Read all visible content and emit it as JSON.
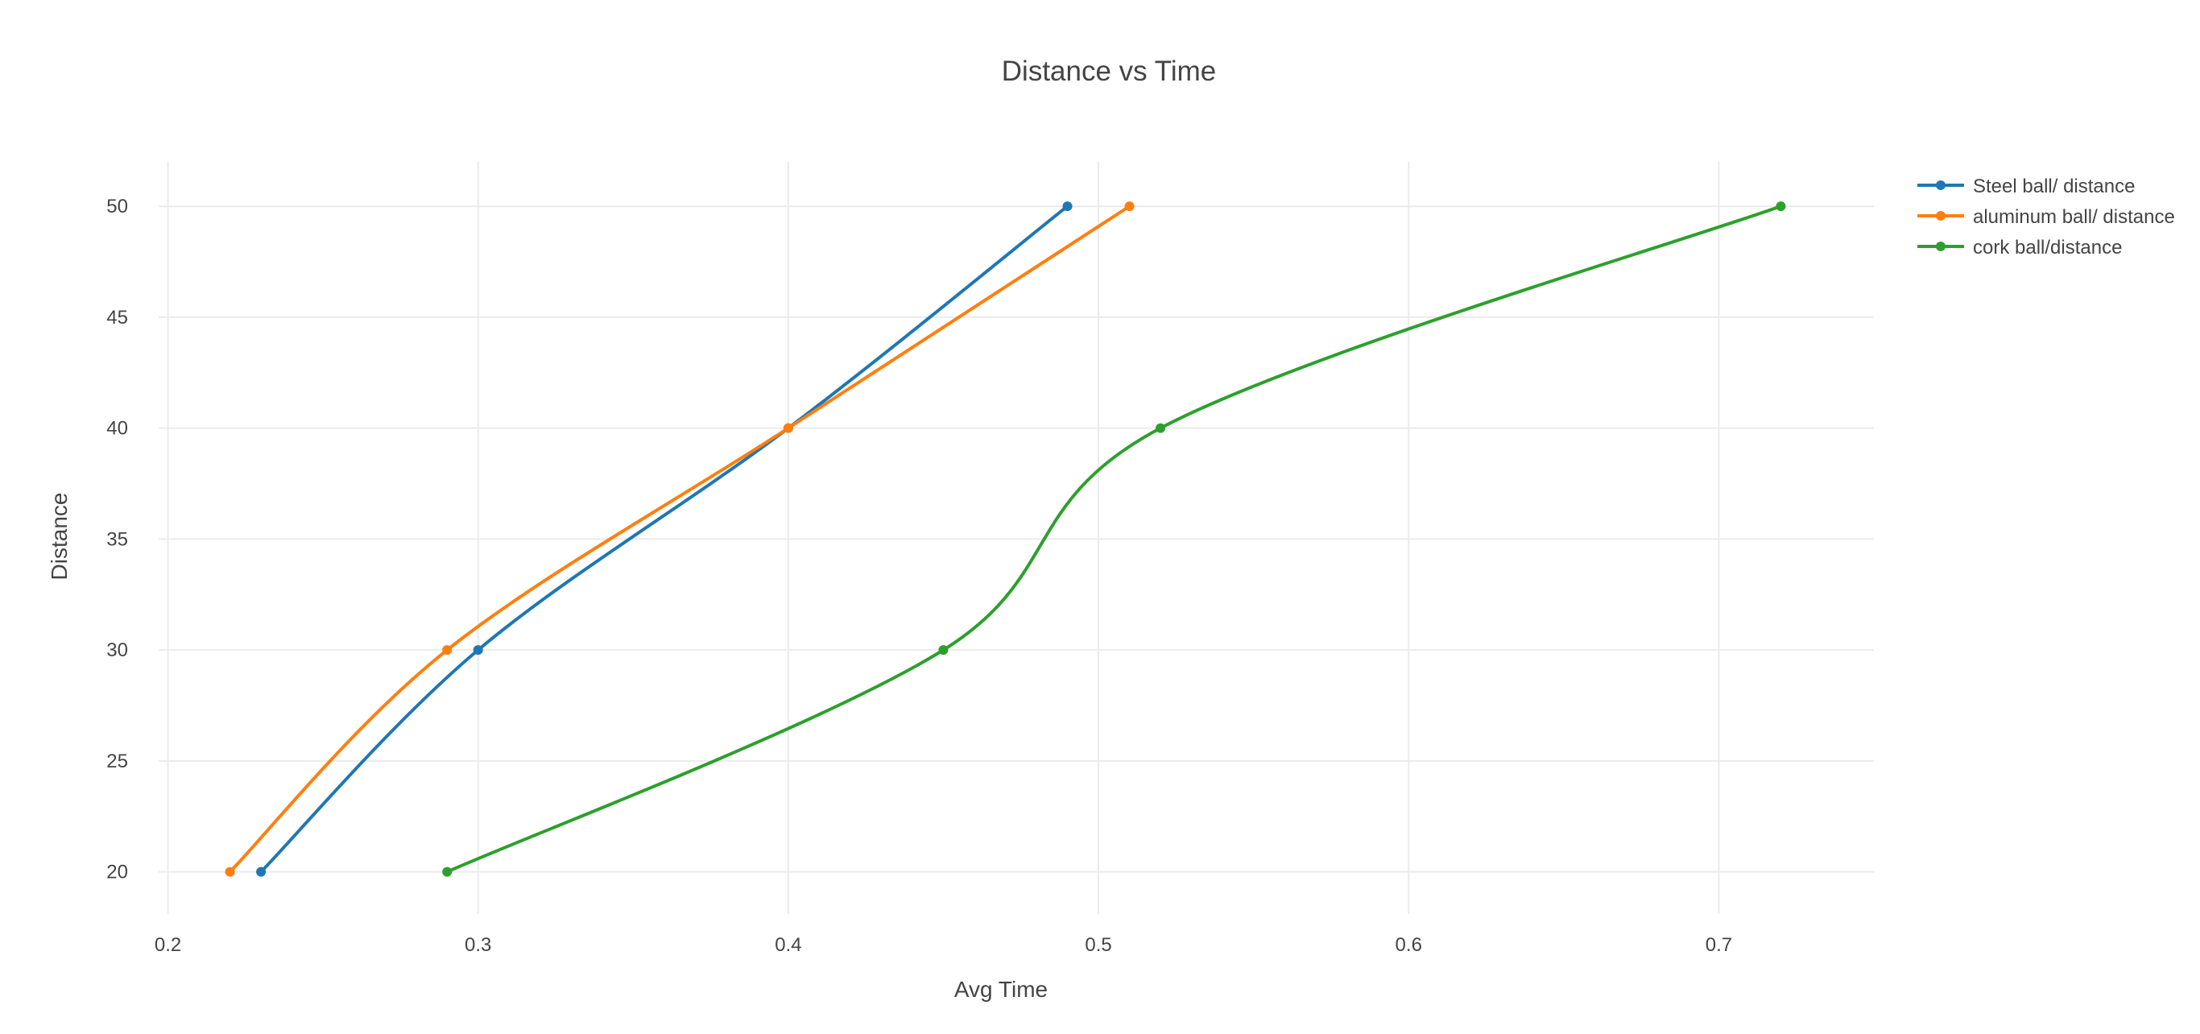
{
  "chart_data": {
    "type": "line",
    "title": "Distance vs Time",
    "xlabel": "Avg Time",
    "ylabel": "Distance",
    "xlim": [
      0.197,
      0.75
    ],
    "ylim": [
      18.1,
      52
    ],
    "xticks": [
      0.2,
      0.3,
      0.4,
      0.5,
      0.6,
      0.7
    ],
    "yticks": [
      20,
      25,
      30,
      35,
      40,
      45,
      50
    ],
    "grid": true,
    "legend_position": "top-right",
    "line_shape": "spline",
    "series": [
      {
        "name": "Steel ball/ distance",
        "color": "#1f77b4",
        "points": [
          {
            "x": 0.23,
            "y": 20
          },
          {
            "x": 0.3,
            "y": 30
          },
          {
            "x": 0.4,
            "y": 40
          },
          {
            "x": 0.49,
            "y": 50
          }
        ]
      },
      {
        "name": "aluminum ball/ distance",
        "color": "#ff7f0e",
        "points": [
          {
            "x": 0.22,
            "y": 20
          },
          {
            "x": 0.29,
            "y": 30
          },
          {
            "x": 0.4,
            "y": 40
          },
          {
            "x": 0.51,
            "y": 50
          }
        ]
      },
      {
        "name": "cork ball/distance",
        "color": "#2ca02c",
        "points": [
          {
            "x": 0.29,
            "y": 20
          },
          {
            "x": 0.45,
            "y": 30
          },
          {
            "x": 0.52,
            "y": 40
          },
          {
            "x": 0.72,
            "y": 50
          }
        ]
      }
    ]
  }
}
